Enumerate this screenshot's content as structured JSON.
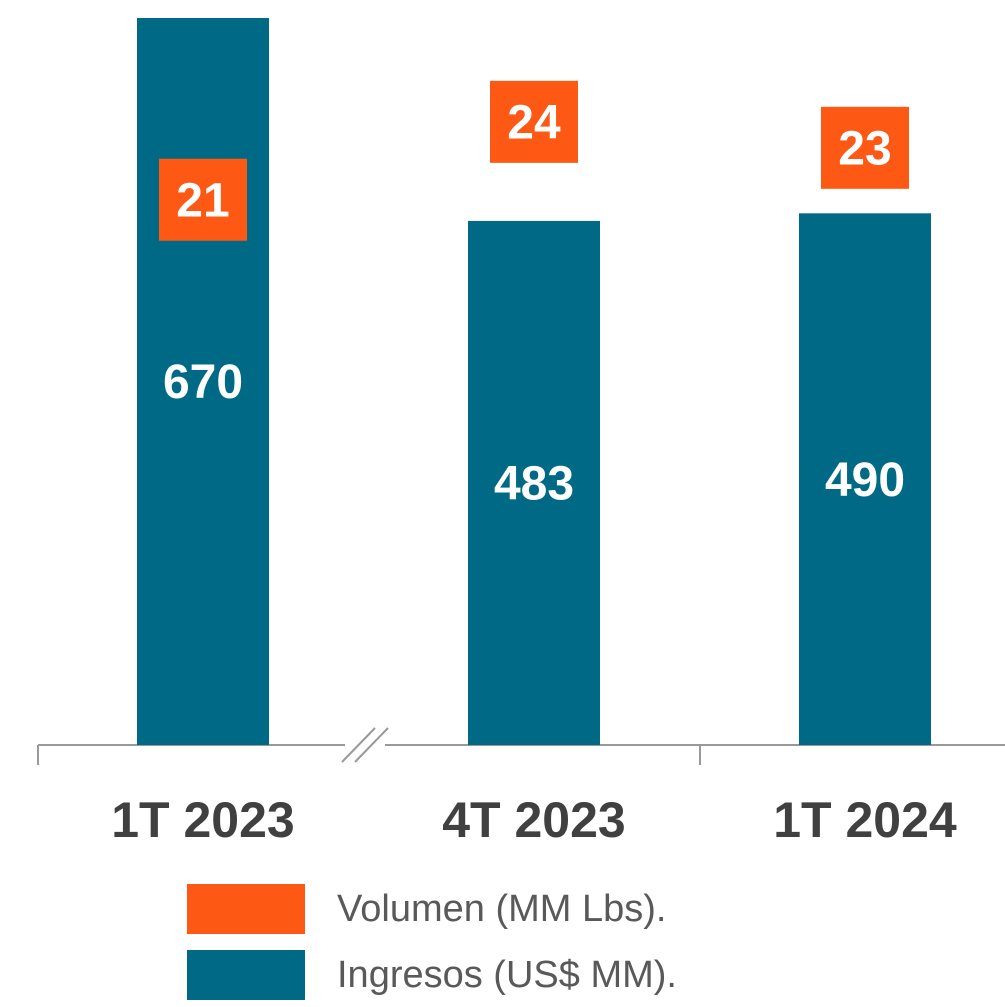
{
  "chart_data": {
    "type": "bar",
    "categories": [
      "1T 2023",
      "4T 2023",
      "1T 2024"
    ],
    "series": [
      {
        "name": "Volumen (MM Lbs).",
        "color": "#fe5815",
        "axis": "y2",
        "values": [
          21,
          24,
          23
        ]
      },
      {
        "name": "Ingresos (US$ MM).",
        "color": "#006a86",
        "values": [
          670,
          483,
          490
        ]
      }
    ],
    "ylim": [
      0,
      670
    ],
    "y2lim": [
      0,
      28
    ]
  }
}
